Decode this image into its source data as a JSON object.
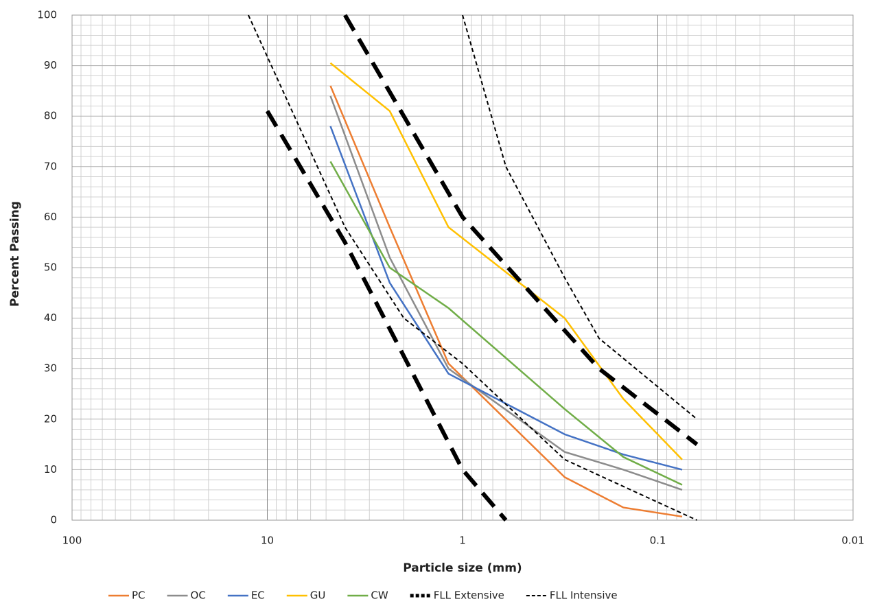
{
  "chart_data": {
    "type": "line",
    "x_label": "Particle size (mm)",
    "y_label": "Percent Passing",
    "x_scale": "log",
    "x_reversed": true,
    "xlim": [
      100,
      0.01
    ],
    "xticks": [
      100,
      10,
      1,
      0.1,
      0.01
    ],
    "ylim": [
      0,
      100
    ],
    "yticks": [
      0,
      10,
      20,
      30,
      40,
      50,
      60,
      70,
      80,
      90,
      100
    ],
    "grid": true,
    "legend": "bottom",
    "series": [
      {
        "name": "PC",
        "color": "#ed7d31",
        "style": "solid",
        "x": [
          4.75,
          2.36,
          1.18,
          0.3,
          0.15,
          0.075
        ],
        "values": [
          86,
          58,
          31,
          8.5,
          2.5,
          0.7
        ]
      },
      {
        "name": "OC",
        "color": "#8c8c8c",
        "style": "solid",
        "x": [
          4.75,
          2.36,
          1.18,
          0.3,
          0.15,
          0.075
        ],
        "values": [
          84,
          52,
          30,
          13.5,
          10,
          6
        ]
      },
      {
        "name": "EC",
        "color": "#4472c4",
        "style": "solid",
        "x": [
          4.75,
          2.36,
          1.18,
          0.3,
          0.15,
          0.075
        ],
        "values": [
          78,
          47,
          29,
          17,
          13,
          10
        ]
      },
      {
        "name": "GU",
        "color": "#ffc000",
        "style": "solid",
        "x": [
          4.75,
          2.36,
          1.18,
          0.3,
          0.15,
          0.075
        ],
        "values": [
          90.5,
          81,
          58,
          40,
          24,
          12
        ]
      },
      {
        "name": "CW",
        "color": "#70ad47",
        "style": "solid",
        "x": [
          4.75,
          2.36,
          1.18,
          0.3,
          0.15,
          0.075
        ],
        "values": [
          71,
          50,
          42,
          22,
          12.5,
          7
        ]
      },
      {
        "name": "FLL Extensive",
        "color": "#000000",
        "style": "long-dash",
        "x": [
          10,
          4,
          1,
          0.6,
          null,
          4,
          1,
          0.2,
          0.063
        ],
        "values": [
          81,
          55,
          10,
          0,
          null,
          100,
          60,
          30,
          15
        ]
      },
      {
        "name": "FLL Intensive",
        "color": "#000000",
        "style": "short-dash",
        "x": [
          12.5,
          4,
          2,
          1,
          0.3,
          0.063,
          null,
          1,
          0.6,
          0.3,
          0.2,
          0.063
        ],
        "values": [
          100,
          58,
          40,
          31,
          12,
          0,
          null,
          100,
          70,
          48,
          36,
          20
        ]
      }
    ]
  }
}
